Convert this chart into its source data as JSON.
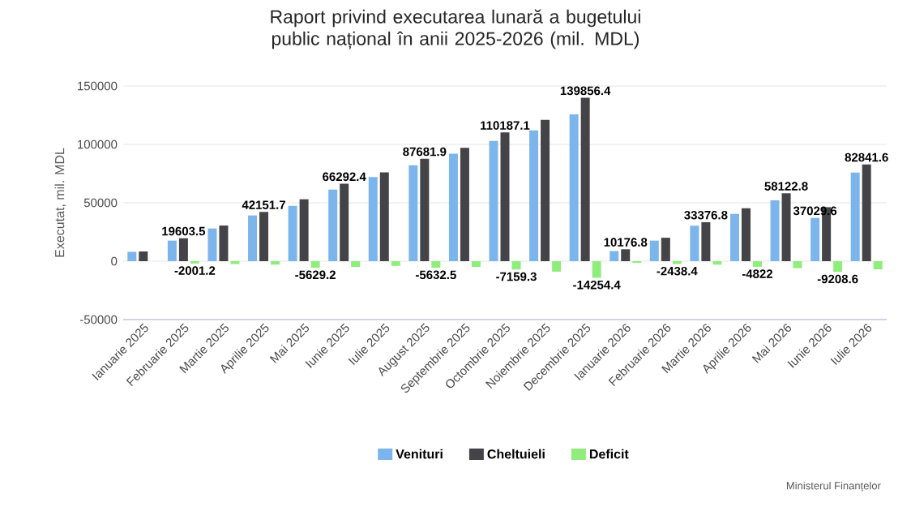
{
  "chart_data": {
    "type": "bar",
    "title": "Raport privind executarea lunară a bugetului public național în anii 2025-2026 (mil. MDL)",
    "ylabel": "Executat, mil. MDL",
    "categories": [
      "Ianuarie 2025",
      "Februarie 2025",
      "Martie 2025",
      "Aprilie 2025",
      "Mai 2025",
      "Iunie 2025",
      "Iulie 2025",
      "August 2025",
      "Septembrie 2025",
      "Octombrie 2025",
      "Noiembrie 2025",
      "Decembrie 2025",
      "Ianuarie 2026",
      "Februarie 2026",
      "Martie 2026",
      "Aprilie 2026",
      "Mai 2026",
      "Iunie 2026",
      "Iulie 2026"
    ],
    "series": [
      {
        "name": "Venituri",
        "color": "#7cb5ec",
        "values": [
          8000,
          17602.3,
          28000,
          39151.7,
          47370.8,
          61292.4,
          72000,
          82049.4,
          92000,
          103027.8,
          112000,
          125602,
          8676.8,
          17600,
          30376.8,
          40478,
          52122.8,
          37029.6,
          75841.6
        ],
        "value_labels": [
          null,
          null,
          null,
          null,
          null,
          null,
          null,
          null,
          null,
          null,
          null,
          null,
          null,
          null,
          null,
          null,
          null,
          "37029.6",
          null
        ]
      },
      {
        "name": "Cheltuieli",
        "color": "#434348",
        "values": [
          8300,
          19603.5,
          30500,
          42151.7,
          53000,
          66292.4,
          76000,
          87681.9,
          97000,
          110187.1,
          121000,
          139856.4,
          10176.8,
          20038.4,
          33376.8,
          45300,
          58122.8,
          46238.2,
          82841.6
        ],
        "value_labels": [
          null,
          "19603.5",
          null,
          "42151.7",
          null,
          "66292.4",
          null,
          "87681.9",
          null,
          "110187.1",
          null,
          "139856.4",
          "10176.8",
          null,
          "33376.8",
          null,
          "58122.8",
          null,
          "82841.6"
        ]
      },
      {
        "name": "Deficit",
        "color": "#90ed7d",
        "values": [
          null,
          -2001.2,
          -2500,
          -3000,
          -5629.2,
          -5000,
          -4000,
          -5632.5,
          -5000,
          -7159.3,
          -9000,
          -14254.4,
          -1500,
          -2438.4,
          -3000,
          -4822,
          -6000,
          -9208.6,
          -7000
        ],
        "value_labels": [
          null,
          "-2001.2",
          null,
          null,
          "-5629.2",
          null,
          null,
          "-5632.5",
          null,
          "-7159.3",
          null,
          "-14254.4",
          null,
          "-2438.4",
          null,
          "-4822",
          null,
          "-9208.6",
          null
        ]
      }
    ],
    "ylim": [
      -50000,
      150000
    ],
    "yticks": [
      -50000,
      0,
      50000,
      100000,
      150000
    ],
    "grid": "y",
    "legend": "bottom",
    "annotations": [
      "Ministerul Finanțelor"
    ]
  }
}
